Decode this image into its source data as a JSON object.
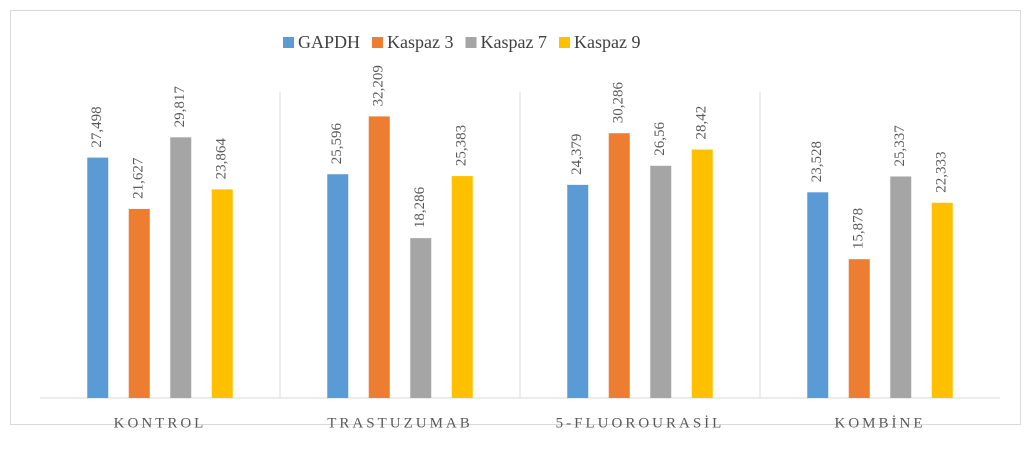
{
  "chart_data": {
    "type": "bar",
    "categories": [
      "KONTROL",
      "TRASTUZUMAB",
      "5-FLUOROURASİL",
      "KOMBİNE"
    ],
    "series": [
      {
        "name": "GAPDH",
        "color": "#5b9bd5",
        "values": [
          27.498,
          25.596,
          24.379,
          23.528
        ],
        "value_labels": [
          "27,498",
          "25,596",
          "24,379",
          "23,528"
        ]
      },
      {
        "name": "Kaspaz 3",
        "color": "#ed7d31",
        "values": [
          21.627,
          32.209,
          30.286,
          15.878
        ],
        "value_labels": [
          "21,627",
          "32,209",
          "30,286",
          "15,878"
        ]
      },
      {
        "name": "Kaspaz 7",
        "color": "#a5a5a5",
        "values": [
          29.817,
          18.286,
          26.56,
          25.337
        ],
        "value_labels": [
          "29,817",
          "18,286",
          "26,56",
          "25,337"
        ]
      },
      {
        "name": "Kaspaz 9",
        "color": "#ffc000",
        "values": [
          23.864,
          25.383,
          28.42,
          22.333
        ],
        "value_labels": [
          "23,864",
          "25,383",
          "28,42",
          "22,333"
        ]
      }
    ],
    "ylim": [
      0,
      35
    ],
    "legend": "top"
  }
}
